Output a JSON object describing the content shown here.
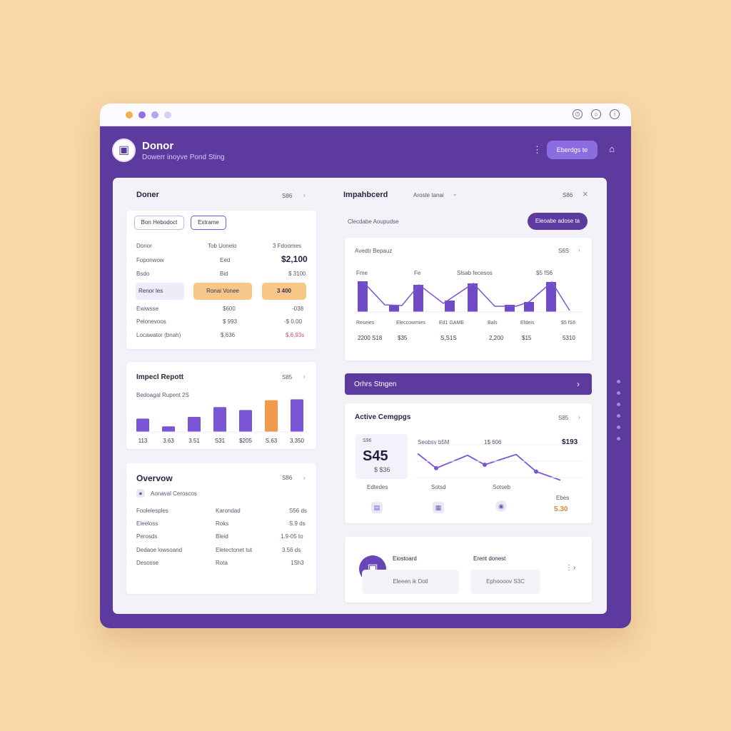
{
  "app": {
    "title": "Donor",
    "subtitle": "Dowerr inoyve Pond Sting",
    "menu_icon": "kebab-icon",
    "button": "Eberdgs te",
    "home_icon": "home-icon"
  },
  "titlebar": {
    "dots": [
      "#f4ad53",
      "#8f72df",
      "#b5a5ef",
      "#d7d0f5"
    ],
    "icons": [
      "clock-icon",
      "notification-icon",
      "info-icon"
    ]
  },
  "donor_card": {
    "title": "Doner",
    "menu": "S86",
    "tabs": [
      "Bon Hebodoct",
      "Extrame"
    ],
    "headers": [
      "Donor",
      "Tob Uonelo",
      "3 Fdoomes"
    ],
    "rows": [
      {
        "name": "Foponwow",
        "mid": "Eed",
        "value": "$2,100"
      },
      {
        "name": "Bsdo",
        "mid": "Bid",
        "value": "$ 3100"
      },
      {
        "name": "Renor les",
        "mid": "Ronai Vonee",
        "value": "3 400"
      },
      {
        "name": "Ewiwsse",
        "mid": "$600",
        "value": "-038"
      },
      {
        "name": "Pelonevoos",
        "mid": "$ 993",
        "value": "-$ 0.00"
      },
      {
        "name": "Locawator (bnah)",
        "mid": "$,636",
        "value": "$,6,93s"
      }
    ]
  },
  "impact_card": {
    "title": "Impecl Repott",
    "menu": "S85",
    "subtitle": "Bedoagal Rupent 2S",
    "values": [
      3.1,
      1.3,
      3.5,
      5.8,
      5.1,
      7.4,
      7.6
    ],
    "labels": [
      "113",
      "3.63",
      "3.51",
      "S31",
      "$205",
      "S.63",
      "3.350"
    ],
    "colors": [
      "#7a55d6",
      "#7a55d6",
      "#7a55d6",
      "#7a55d6",
      "#7a55d6",
      "#f19a4b",
      "#7a55d6"
    ]
  },
  "overview_card": {
    "title": "Overvow",
    "menu": "S86",
    "legend": "Aonaval Ceroscos",
    "rows": [
      {
        "name": "Foolelesples",
        "mid": "Karondad",
        "value": "S56 ds"
      },
      {
        "name": "Eleeloss",
        "mid": "Roks",
        "value": "S.9 ds"
      },
      {
        "name": "Perosds",
        "mid": "Bleid",
        "value": "1.9-05 to"
      },
      {
        "name": "Dedaoe lowsoand",
        "mid": "Eletectonet tut",
        "value": "3.56 ds"
      },
      {
        "name": "Desosse",
        "mid": "Rota",
        "value": "1Sh3"
      }
    ]
  },
  "impact_board": {
    "title": "Impahbcerd",
    "filter": "Aroste tanai",
    "menu": "S86",
    "close_icon": "close-icon",
    "subtitle": "Clecdabe Aoupudse",
    "button": "Eleoabe adose ta",
    "chart": {
      "title": "Avedtr Bepauz",
      "menu": "S6S",
      "tags": [
        "Fme",
        "Fe",
        "Slsab fecesos",
        "$5 fS6"
      ],
      "bar_values": [
        4.3,
        1.0,
        3.8,
        1.6,
        4.0,
        1.0,
        1.4,
        4.2
      ],
      "line_values": [
        4.3,
        1.0,
        0.9,
        3.8,
        1.2,
        4.0,
        0.8,
        0.8,
        1.4,
        4.2,
        0.2
      ],
      "labels": [
        "Reseies",
        "Eleccowmies",
        "Ed1 GAME",
        "Bals",
        "Efdeis",
        "$5 fS6"
      ],
      "values": [
        "2200 S18",
        "$35",
        "S,S1S",
        "2,200",
        "$15",
        "5310"
      ]
    }
  },
  "status_bar": {
    "label": "Orhrs Stngen",
    "action": "›"
  },
  "active_campaigns": {
    "title": "Active Cemgpgs",
    "menu": "S85",
    "small_label": "S96",
    "big_value": "S45",
    "sub_value": "$ $36",
    "series_label": "Seobsy b5M",
    "series_value": "1$ 606",
    "right_value": "$193",
    "line_values": [
      3.3,
      1.6,
      3.1,
      2.0,
      3.2,
      1.2,
      0.2
    ],
    "labels": [
      "Edtedes",
      "Sotsd",
      "Sotseb"
    ],
    "footer_label": "Ebes",
    "footer_value": "5.30",
    "icons": [
      "document-icon",
      "calendar-icon",
      "globe-icon"
    ]
  },
  "bottom_card": {
    "icon": "wallet-icon",
    "label_one": "Eiostoard",
    "input_one": "Eleeen ik Dotl",
    "label_two": "Erent donest",
    "input_two": "Ephoooov    S3C",
    "right_icons": [
      "kebab-icon",
      "chevron-icon"
    ]
  }
}
